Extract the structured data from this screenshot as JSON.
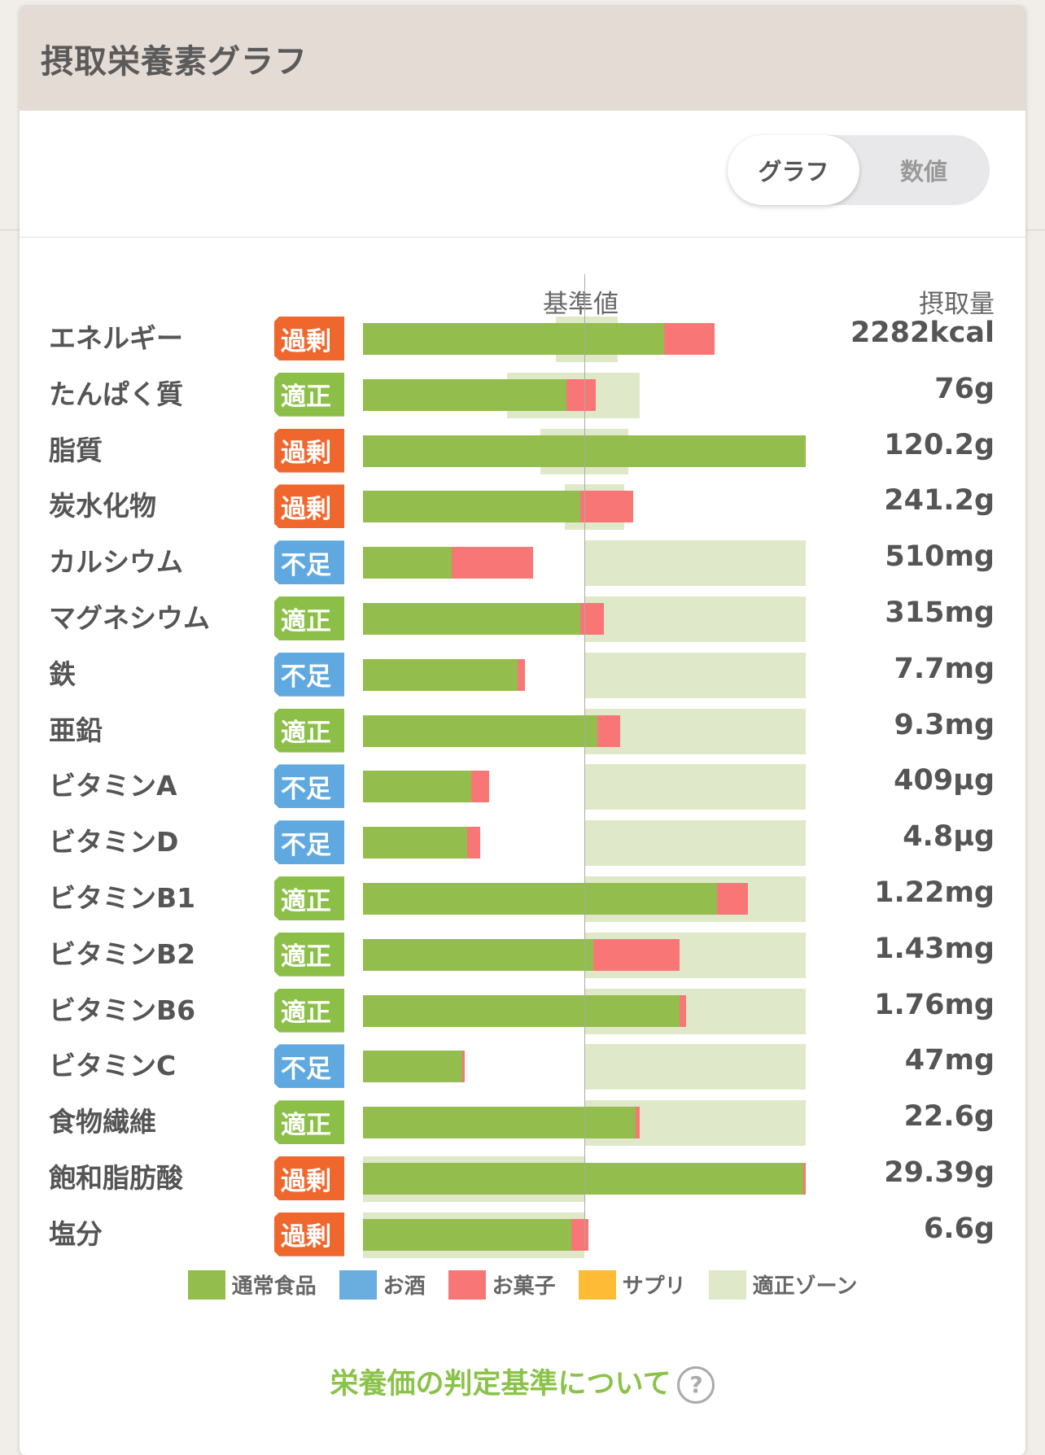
{
  "title": "摂取栄養素グラフ",
  "toggle": {
    "graph": "グラフ",
    "numeric": "数値"
  },
  "headers": {
    "baseline": "基準値",
    "intake": "摂取量"
  },
  "colors": {
    "food": "#93bd4c",
    "alcohol": "#6aaee0",
    "sweets": "#f87776",
    "supplement": "#fdbb36",
    "zone": "#dfe9c9",
    "excess": "#f0672e",
    "adequate": "#8bbf47",
    "deficient": "#5fa9e0"
  },
  "status_labels": {
    "excess": "過剰",
    "adequate": "適正",
    "deficient": "不足"
  },
  "nutrients": [
    {
      "name": "エネルギー",
      "status": "excess",
      "amount": "2282kcal",
      "food_pct": 136,
      "sweets_pct": 23,
      "zone": [
        87,
        115
      ]
    },
    {
      "name": "たんぱく質",
      "status": "adequate",
      "amount": "76g",
      "food_pct": 92,
      "sweets_pct": 13,
      "zone": [
        65,
        125
      ]
    },
    {
      "name": "脂質",
      "status": "excess",
      "amount": "120.2g",
      "food_pct": 200,
      "sweets_pct": 0,
      "zone": [
        80,
        120
      ]
    },
    {
      "name": "炭水化物",
      "status": "excess",
      "amount": "241.2g",
      "food_pct": 98,
      "sweets_pct": 24,
      "zone": [
        91,
        118
      ]
    },
    {
      "name": "カルシウム",
      "status": "deficient",
      "amount": "510mg",
      "food_pct": 40,
      "sweets_pct": 37,
      "zone": [
        100,
        200
      ]
    },
    {
      "name": "マグネシウム",
      "status": "adequate",
      "amount": "315mg",
      "food_pct": 98,
      "sweets_pct": 11,
      "zone": [
        100,
        200
      ]
    },
    {
      "name": "鉄",
      "status": "deficient",
      "amount": "7.7mg",
      "food_pct": 70,
      "sweets_pct": 3,
      "zone": [
        100,
        200
      ]
    },
    {
      "name": "亜鉛",
      "status": "adequate",
      "amount": "9.3mg",
      "food_pct": 106,
      "sweets_pct": 10,
      "zone": [
        100,
        200
      ]
    },
    {
      "name": "ビタミンA",
      "status": "deficient",
      "amount": "409µg",
      "food_pct": 49,
      "sweets_pct": 8,
      "zone": [
        100,
        200
      ]
    },
    {
      "name": "ビタミンD",
      "status": "deficient",
      "amount": "4.8µg",
      "food_pct": 47,
      "sweets_pct": 6,
      "zone": [
        100,
        200
      ]
    },
    {
      "name": "ビタミンB1",
      "status": "adequate",
      "amount": "1.22mg",
      "food_pct": 160,
      "sweets_pct": 14,
      "zone": [
        100,
        200
      ]
    },
    {
      "name": "ビタミンB2",
      "status": "adequate",
      "amount": "1.43mg",
      "food_pct": 104,
      "sweets_pct": 39,
      "zone": [
        100,
        200
      ]
    },
    {
      "name": "ビタミンB6",
      "status": "adequate",
      "amount": "1.76mg",
      "food_pct": 143,
      "sweets_pct": 3,
      "zone": [
        100,
        200
      ]
    },
    {
      "name": "ビタミンC",
      "status": "deficient",
      "amount": "47mg",
      "food_pct": 45,
      "sweets_pct": 1,
      "zone": [
        100,
        200
      ]
    },
    {
      "name": "食物繊維",
      "status": "adequate",
      "amount": "22.6g",
      "food_pct": 123,
      "sweets_pct": 2,
      "zone": [
        100,
        200
      ]
    },
    {
      "name": "飽和脂肪酸",
      "status": "excess",
      "amount": "29.39g",
      "food_pct": 199,
      "sweets_pct": 1,
      "zone": [
        0,
        100
      ]
    },
    {
      "name": "塩分",
      "status": "excess",
      "amount": "6.6g",
      "food_pct": 94,
      "sweets_pct": 8,
      "zone": [
        0,
        100
      ]
    }
  ],
  "legend": [
    {
      "label": "通常食品",
      "color": "#93bd4c"
    },
    {
      "label": "お酒",
      "color": "#6aaee0"
    },
    {
      "label": "お菓子",
      "color": "#f87776"
    },
    {
      "label": "サプリ",
      "color": "#fdbb36"
    },
    {
      "label": "適正ゾーン",
      "color": "#dfe9c9"
    }
  ],
  "judge_link": "栄養価の判定基準について",
  "help_glyph": "?"
}
